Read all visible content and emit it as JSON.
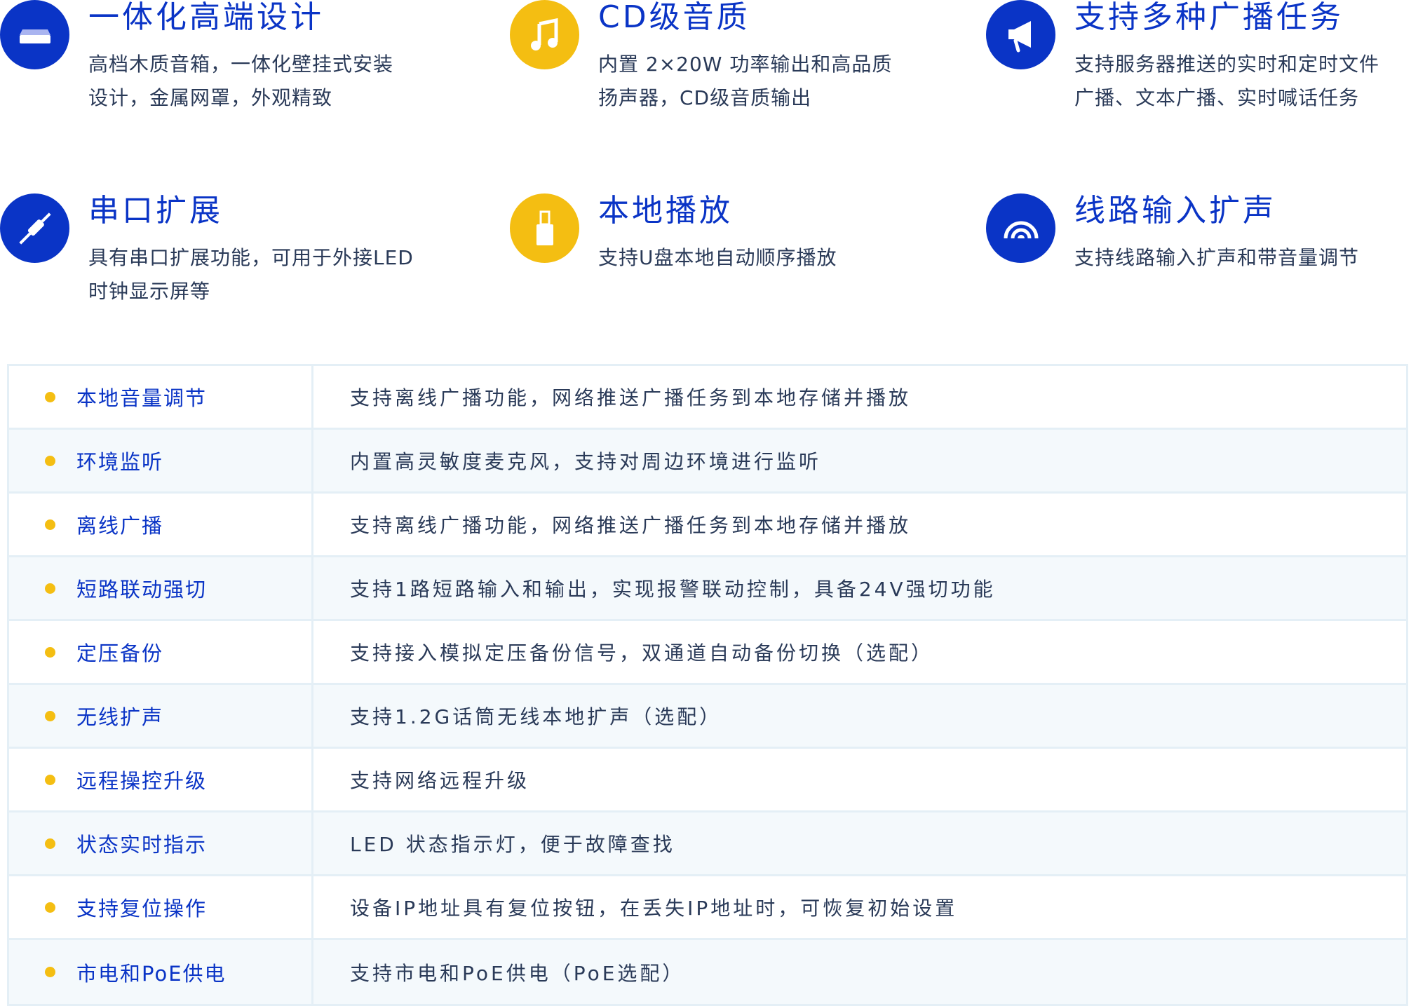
{
  "colors": {
    "blue": "#0a34c6",
    "yellow": "#f4be12",
    "text": "#2a3a58",
    "border": "#e4eff6"
  },
  "features": [
    {
      "icon": "speaker-box-icon",
      "title": "一体化高端设计",
      "lines": [
        "高档木质音箱，一体化壁挂式安装",
        "设计，金属网罩，外观精致"
      ]
    },
    {
      "icon": "music-note-icon",
      "title": "CD级音质",
      "lines": [
        "内置 2×20W 功率输出和高品质",
        "扬声器，CD级音质输出"
      ]
    },
    {
      "icon": "megaphone-icon",
      "title": "支持多种广播任务",
      "lines": [
        "支持服务器推送的实时和定时文件",
        "广播、文本广播、实时喊话任务"
      ]
    },
    {
      "icon": "plug-icon",
      "title": "串口扩展",
      "lines": [
        "具有串口扩展功能，可用于外接LED",
        "时钟显示屏等"
      ]
    },
    {
      "icon": "usb-drive-icon",
      "title": "本地播放",
      "lines": [
        "支持U盘本地自动顺序播放"
      ]
    },
    {
      "icon": "signal-icon",
      "title": "线路输入扩声",
      "lines": [
        "支持线路输入扩声和带音量调节"
      ]
    }
  ],
  "specs": [
    {
      "label": "本地音量调节",
      "desc": "支持离线广播功能，网络推送广播任务到本地存储并播放"
    },
    {
      "label": "环境监听",
      "desc": "内置高灵敏度麦克风，支持对周边环境进行监听"
    },
    {
      "label": "离线广播",
      "desc": "支持离线广播功能，网络推送广播任务到本地存储并播放"
    },
    {
      "label": "短路联动强切",
      "desc": "支持1路短路输入和输出，实现报警联动控制，具备24V强切功能"
    },
    {
      "label": "定压备份",
      "desc": "支持接入模拟定压备份信号，双通道自动备份切换（选配）"
    },
    {
      "label": "无线扩声",
      "desc": "支持1.2G话筒无线本地扩声（选配）"
    },
    {
      "label": "远程操控升级",
      "desc": "支持网络远程升级"
    },
    {
      "label": "状态实时指示",
      "desc": "LED 状态指示灯，便于故障查找"
    },
    {
      "label": "支持复位操作",
      "desc": "设备IP地址具有复位按钮，在丢失IP地址时，可恢复初始设置"
    },
    {
      "label": "市电和PoE供电",
      "desc": "支持市电和PoE供电（PoE选配）"
    }
  ]
}
